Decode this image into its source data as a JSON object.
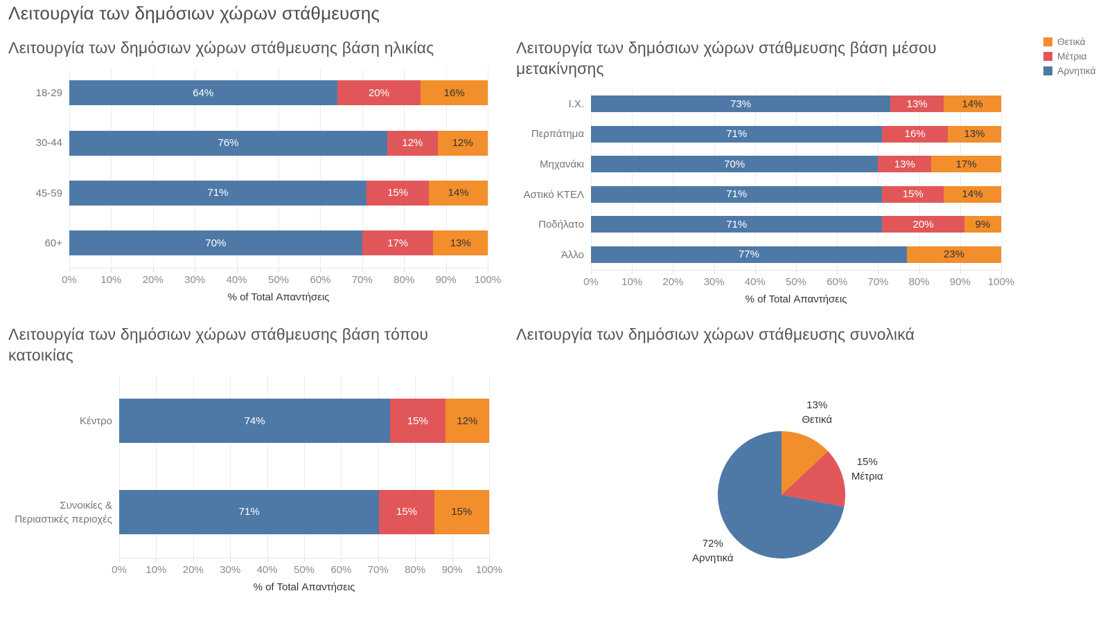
{
  "page": {
    "title": "Λειτουργία των δημόσιων χώρων στάθμευσης"
  },
  "colors": {
    "positive": "#F28E2B",
    "medium": "#E15759",
    "negative": "#4E79A7"
  },
  "legend": {
    "items": [
      {
        "key": "positive",
        "label": "Θετικά",
        "color": "#F28E2B"
      },
      {
        "key": "medium",
        "label": "Μέτρια",
        "color": "#E15759"
      },
      {
        "key": "negative",
        "label": "Αρνητικά",
        "color": "#4E79A7"
      }
    ]
  },
  "chart_data": [
    {
      "id": "by-age",
      "type": "bar",
      "orientation": "horizontal-stacked",
      "title": "Λειτουργία των δημόσιων χώρων στάθμευσης βάση ηλικίας",
      "categories": [
        "18-29",
        "30-44",
        "45-59",
        "60+"
      ],
      "series": [
        {
          "key": "negative",
          "name": "Αρνητικά",
          "color": "#4E79A7",
          "label_color": "#ffffff",
          "values": [
            64,
            76,
            71,
            70
          ]
        },
        {
          "key": "medium",
          "name": "Μέτρια",
          "color": "#E15759",
          "label_color": "#ffffff",
          "values": [
            20,
            12,
            15,
            17
          ]
        },
        {
          "key": "positive",
          "name": "Θετικά",
          "color": "#F28E2B",
          "label_color": "#333333",
          "values": [
            16,
            12,
            14,
            13
          ]
        }
      ],
      "value_suffix": "%",
      "xlim": [
        0,
        100
      ],
      "ticks": [
        "0%",
        "10%",
        "20%",
        "30%",
        "40%",
        "50%",
        "60%",
        "70%",
        "80%",
        "90%",
        "100%"
      ],
      "xlabel": "% of Total Απαντήσεις"
    },
    {
      "id": "by-transport",
      "type": "bar",
      "orientation": "horizontal-stacked",
      "title": "Λειτουργία των δημόσιων χώρων στάθμευσης βάση μέσου μετακίνησης",
      "categories": [
        "Ι.Χ.",
        "Περπάτημα",
        "Μηχανάκι",
        "Αστικό ΚΤΕΛ",
        "Ποδήλατο",
        "Άλλο"
      ],
      "series": [
        {
          "key": "negative",
          "name": "Αρνητικά",
          "color": "#4E79A7",
          "label_color": "#ffffff",
          "values": [
            73,
            71,
            70,
            71,
            71,
            77
          ]
        },
        {
          "key": "medium",
          "name": "Μέτρια",
          "color": "#E15759",
          "label_color": "#ffffff",
          "values": [
            13,
            16,
            13,
            15,
            20,
            0
          ]
        },
        {
          "key": "positive",
          "name": "Θετικά",
          "color": "#F28E2B",
          "label_color": "#333333",
          "values": [
            14,
            13,
            17,
            14,
            9,
            23
          ]
        }
      ],
      "value_suffix": "%",
      "xlim": [
        0,
        100
      ],
      "ticks": [
        "0%",
        "10%",
        "20%",
        "30%",
        "40%",
        "50%",
        "60%",
        "70%",
        "80%",
        "90%",
        "100%"
      ],
      "xlabel": "% of Total Απαντήσεις"
    },
    {
      "id": "by-residence",
      "type": "bar",
      "orientation": "horizontal-stacked",
      "title": "Λειτουργία των δημόσιων χώρων στάθμευσης βάση τόπου κατοικίας",
      "categories": [
        "Κέντρο",
        "Συνοικίες & Περιαστικές περιοχές"
      ],
      "series": [
        {
          "key": "negative",
          "name": "Αρνητικά",
          "color": "#4E79A7",
          "label_color": "#ffffff",
          "values": [
            74,
            71
          ]
        },
        {
          "key": "medium",
          "name": "Μέτρια",
          "color": "#E15759",
          "label_color": "#ffffff",
          "values": [
            15,
            15
          ]
        },
        {
          "key": "positive",
          "name": "Θετικά",
          "color": "#F28E2B",
          "label_color": "#333333",
          "values": [
            12,
            15
          ]
        }
      ],
      "value_suffix": "%",
      "xlim": [
        0,
        100
      ],
      "ticks": [
        "0%",
        "10%",
        "20%",
        "30%",
        "40%",
        "50%",
        "60%",
        "70%",
        "80%",
        "90%",
        "100%"
      ],
      "xlabel": "% of Total Απαντήσεις"
    },
    {
      "id": "overall",
      "type": "pie",
      "title": "Λειτουργία των δημόσιων χώρων στάθμευσης συνολικά",
      "slices": [
        {
          "key": "positive",
          "label": "Θετικά",
          "value": 13,
          "color": "#F28E2B"
        },
        {
          "key": "medium",
          "label": "Μέτρια",
          "value": 15,
          "color": "#E15759"
        },
        {
          "key": "negative",
          "label": "Αρνητικά",
          "value": 72,
          "color": "#4E79A7"
        }
      ],
      "value_suffix": "%"
    }
  ]
}
